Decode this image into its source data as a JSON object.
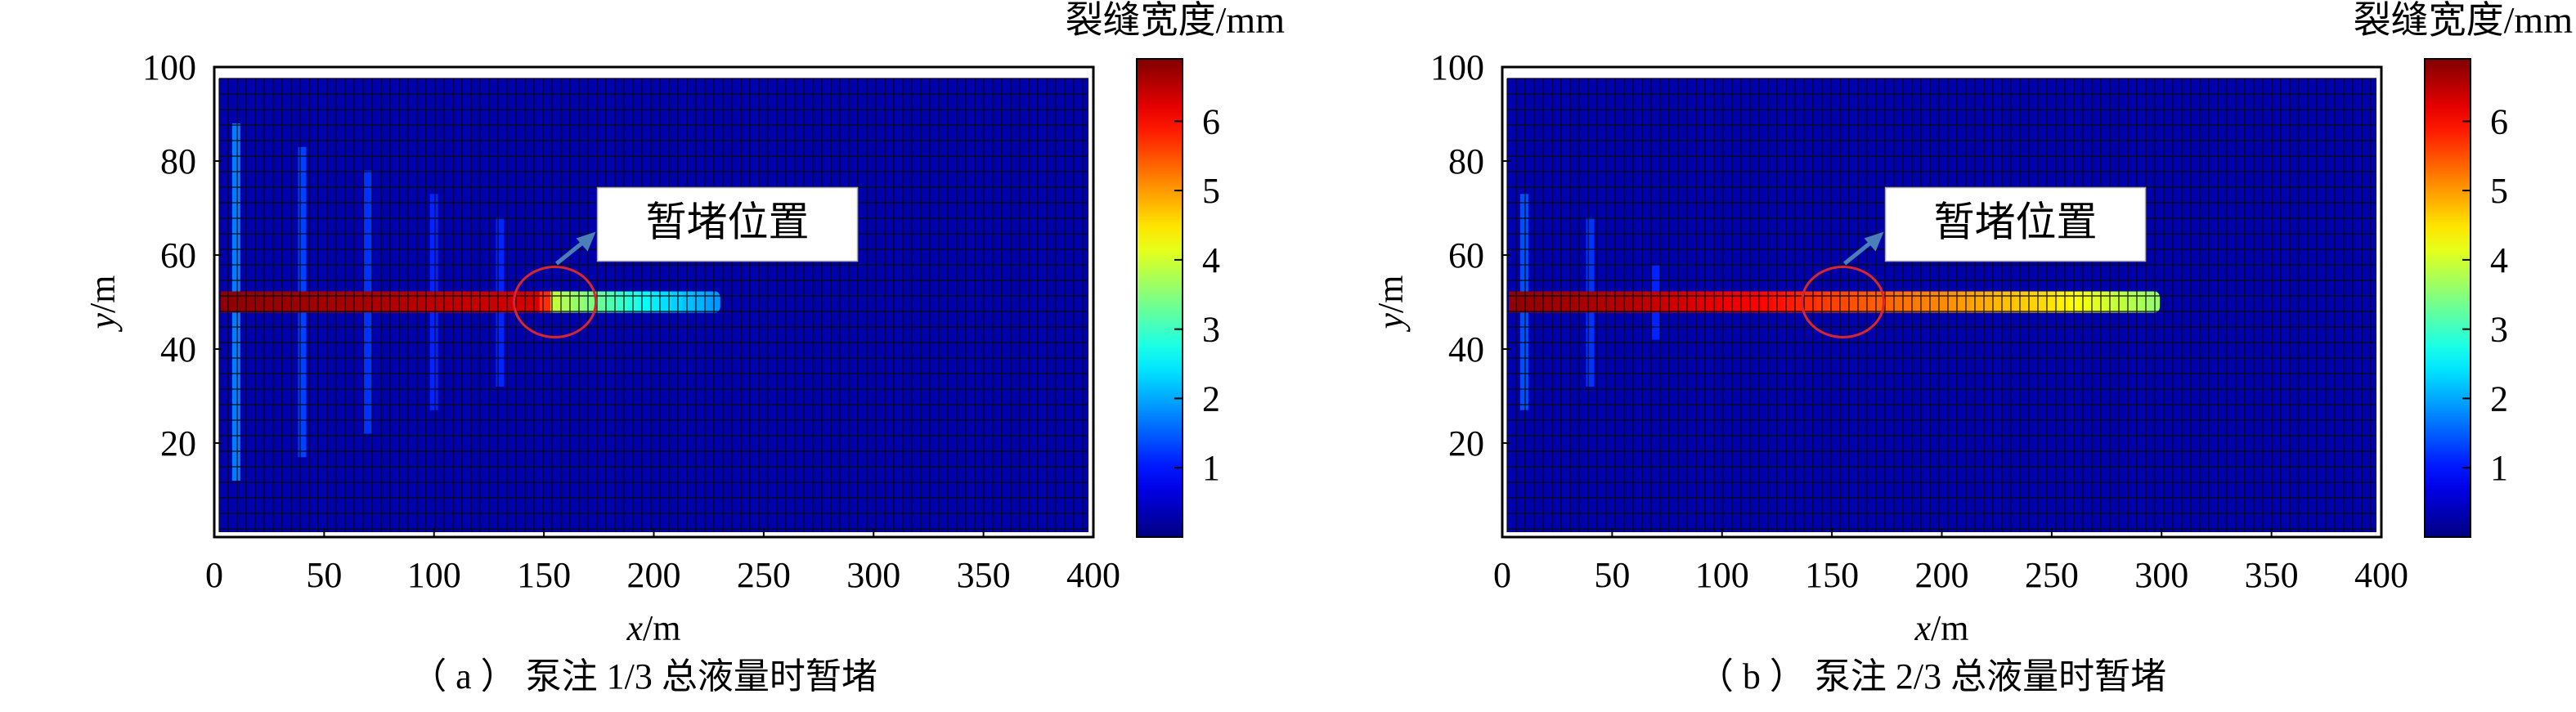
{
  "chart_data": [
    {
      "type": "heatmap",
      "panel": "a",
      "caption": "（ a ） 泵注 1/3 总液量时暂堵",
      "xlabel_var": "x",
      "xlabel_unit": "/m",
      "ylabel_var": "y",
      "ylabel_unit": "/m",
      "xlim": [
        0,
        400
      ],
      "ylim": [
        0,
        100
      ],
      "xticks": [
        0,
        50,
        100,
        150,
        200,
        250,
        300,
        350,
        400
      ],
      "yticks": [
        20,
        40,
        60,
        80,
        100
      ],
      "colorbar": {
        "title": "裂缝宽度/mm",
        "range": [
          0,
          6.9
        ],
        "ticks": [
          1,
          2,
          3,
          4,
          5,
          6
        ],
        "colormap": "jet"
      },
      "annotation": {
        "text": "暂堵位置",
        "circle_center": [
          155,
          50
        ],
        "circle_color": "#d9262c",
        "arrow_color": "#4a7fb8"
      },
      "background_width_mm": 0.3,
      "main_fracture": {
        "y": 50,
        "x_start": 3,
        "x_end": 228,
        "width_profile_mm": [
          [
            0,
            6.8
          ],
          [
            70,
            6.6
          ],
          [
            150,
            6.3
          ],
          [
            152,
            4.0
          ],
          [
            175,
            3.3
          ],
          [
            200,
            2.5
          ],
          [
            228,
            1.9
          ]
        ]
      },
      "branch_fractures": [
        {
          "x": 10,
          "y_min": 12,
          "y_max": 88,
          "width_mm": 1.7
        },
        {
          "x": 40,
          "y_min": 17,
          "y_max": 83,
          "width_mm": 1.3
        },
        {
          "x": 70,
          "y_min": 22,
          "y_max": 78,
          "width_mm": 1.2
        },
        {
          "x": 100,
          "y_min": 27,
          "y_max": 73,
          "width_mm": 1.1
        },
        {
          "x": 130,
          "y_min": 32,
          "y_max": 68,
          "width_mm": 1.1
        }
      ]
    },
    {
      "type": "heatmap",
      "panel": "b",
      "caption": "（ b ） 泵注 2/3 总液量时暂堵",
      "xlabel_var": "x",
      "xlabel_unit": "/m",
      "ylabel_var": "y",
      "ylabel_unit": "/m",
      "xlim": [
        0,
        400
      ],
      "ylim": [
        0,
        100
      ],
      "xticks": [
        0,
        50,
        100,
        150,
        200,
        250,
        300,
        350,
        400
      ],
      "yticks": [
        20,
        40,
        60,
        80,
        100
      ],
      "colorbar": {
        "title": "裂缝宽度/mm",
        "range": [
          0,
          6.9
        ],
        "ticks": [
          1,
          2,
          3,
          4,
          5,
          6
        ],
        "colormap": "jet"
      },
      "annotation": {
        "text": "暂堵位置",
        "circle_center": [
          155,
          50
        ],
        "circle_color": "#d9262c",
        "arrow_color": "#4a7fb8"
      },
      "background_width_mm": 0.3,
      "main_fracture": {
        "y": 50,
        "x_start": 3,
        "x_end": 297,
        "width_profile_mm": [
          [
            0,
            6.8
          ],
          [
            60,
            6.5
          ],
          [
            120,
            6.0
          ],
          [
            150,
            5.6
          ],
          [
            200,
            5.1
          ],
          [
            250,
            4.5
          ],
          [
            297,
            3.6
          ]
        ]
      },
      "branch_fractures": [
        {
          "x": 10,
          "y_min": 27,
          "y_max": 73,
          "width_mm": 1.4
        },
        {
          "x": 40,
          "y_min": 32,
          "y_max": 68,
          "width_mm": 1.2
        },
        {
          "x": 70,
          "y_min": 42,
          "y_max": 58,
          "width_mm": 1.1
        }
      ]
    }
  ]
}
